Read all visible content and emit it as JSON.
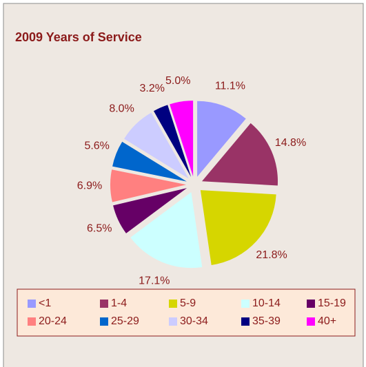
{
  "chart_data": {
    "type": "pie",
    "title": "2009 Years of Service",
    "categories": [
      "<1",
      "1-4",
      "5-9",
      "10-14",
      "15-19",
      "20-24",
      "25-29",
      "30-34",
      "35-39",
      "40+"
    ],
    "values": [
      11.1,
      14.8,
      21.8,
      17.1,
      6.5,
      6.9,
      5.6,
      8.0,
      3.2,
      5.0
    ],
    "value_labels": [
      "11.1%",
      "14.8%",
      "21.8%",
      "17.1%",
      "6.5%",
      "6.9%",
      "5.6%",
      "8.0%",
      "3.2%",
      "5.0%"
    ],
    "colors": [
      "#9999ff",
      "#993366",
      "#d6d600",
      "#ccffff",
      "#660066",
      "#ff8080",
      "#0066cc",
      "#ccccff",
      "#000080",
      "#ff00ff"
    ]
  }
}
